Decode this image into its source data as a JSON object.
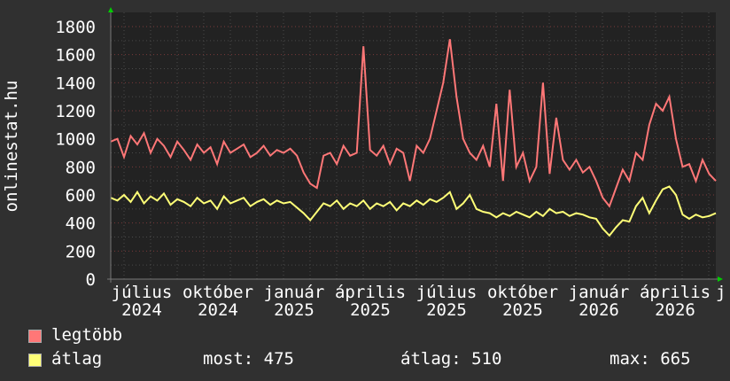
{
  "chart_data": {
    "type": "line",
    "ylabel": "onlinestat.hu",
    "ylim": [
      0,
      1900
    ],
    "yticks": [
      "0",
      "200",
      "400",
      "600",
      "800",
      "1000",
      "1200",
      "1400",
      "1600",
      "1800"
    ],
    "xticks": [
      "július 2024",
      "október 2024",
      "január 2025",
      "április 2025",
      "július 2025",
      "október 2025",
      "január 2026",
      "április 2026",
      "j"
    ],
    "grid": true,
    "legend_position": "bottom-left",
    "series": [
      {
        "name": "legtöbb",
        "color": "#ff7777",
        "values": [
          980,
          1000,
          870,
          1020,
          960,
          1040,
          900,
          1000,
          950,
          870,
          980,
          920,
          850,
          960,
          900,
          940,
          820,
          980,
          900,
          930,
          960,
          870,
          900,
          950,
          880,
          920,
          900,
          930,
          880,
          760,
          680,
          650,
          880,
          900,
          820,
          950,
          880,
          900,
          1660,
          920,
          880,
          950,
          820,
          930,
          900,
          700,
          950,
          900,
          1000,
          1200,
          1400,
          1710,
          1300,
          1000,
          900,
          850,
          950,
          800,
          1250,
          700,
          1350,
          800,
          900,
          700,
          800,
          1400,
          750,
          1150,
          850,
          780,
          850,
          760,
          800,
          700,
          580,
          520,
          650,
          780,
          700,
          900,
          850,
          1100,
          1250,
          1200,
          1300,
          1000,
          800,
          820,
          700,
          850,
          750,
          700
        ]
      },
      {
        "name": "átlag",
        "color": "#ffff77",
        "values": [
          580,
          560,
          600,
          550,
          620,
          540,
          590,
          560,
          610,
          530,
          570,
          550,
          520,
          580,
          540,
          560,
          500,
          590,
          540,
          560,
          580,
          520,
          550,
          570,
          530,
          560,
          540,
          550,
          510,
          470,
          420,
          480,
          540,
          520,
          560,
          500,
          540,
          520,
          560,
          500,
          540,
          520,
          550,
          490,
          540,
          520,
          560,
          530,
          570,
          550,
          580,
          620,
          500,
          540,
          600,
          500,
          480,
          470,
          440,
          470,
          450,
          480,
          460,
          440,
          480,
          450,
          500,
          470,
          480,
          450,
          470,
          460,
          440,
          430,
          360,
          310,
          370,
          420,
          410,
          520,
          580,
          470,
          560,
          640,
          660,
          600,
          460,
          430,
          460,
          440,
          450,
          470
        ]
      }
    ]
  },
  "legend": {
    "max_label": "legtöbb",
    "avg_label": "átlag",
    "most": "most: 475",
    "atlag": "átlag: 510",
    "max": "max: 665"
  }
}
